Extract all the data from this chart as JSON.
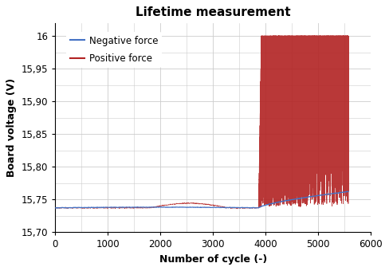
{
  "title": "Lifetime measurement",
  "xlabel": "Number of cycle (-)",
  "ylabel": "Board voltage (V)",
  "xlim": [
    0,
    6000
  ],
  "ylim": [
    15.7,
    16.02
  ],
  "yticks": [
    15.7,
    15.75,
    15.8,
    15.85,
    15.9,
    15.95,
    16
  ],
  "xticks": [
    0,
    1000,
    2000,
    3000,
    4000,
    5000,
    6000
  ],
  "neg_color": "#4472C4",
  "pos_color": "#B22222",
  "legend_labels": [
    "Negative force",
    "Positive force"
  ],
  "crack_cycle": 3870,
  "end_cycle": 5580,
  "bg_color": "#ffffff",
  "grid_color": "#cccccc",
  "title_fontsize": 11,
  "axis_fontsize": 9,
  "tick_fontsize": 8.5
}
